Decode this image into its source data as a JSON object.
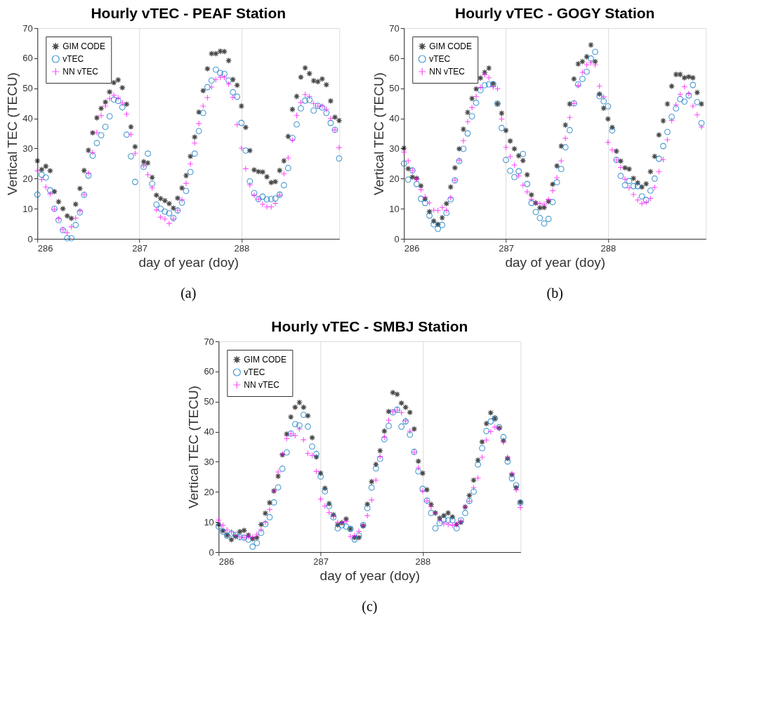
{
  "chart_data": [
    {
      "type": "scatter",
      "title": "Hourly vTEC - PEAF Station",
      "xlabel": "day of year (doy)",
      "ylabel": "Vertical TEC (TECU)",
      "annotations": [
        "(a)"
      ],
      "xlim": [
        286,
        288.96
      ],
      "xticks": [
        286,
        287,
        288
      ],
      "ylim": [
        0,
        70
      ],
      "yticks": [
        0,
        10,
        20,
        30,
        40,
        50,
        60,
        70
      ],
      "grid": "x",
      "legend": "top left",
      "x": [
        286,
        286.042,
        286.083,
        286.125,
        286.167,
        286.208,
        286.25,
        286.292,
        286.333,
        286.375,
        286.417,
        286.458,
        286.5,
        286.542,
        286.583,
        286.625,
        286.667,
        286.708,
        286.75,
        286.792,
        286.833,
        286.875,
        286.917,
        286.958,
        287,
        287.042,
        287.083,
        287.125,
        287.167,
        287.208,
        287.25,
        287.292,
        287.333,
        287.375,
        287.417,
        287.458,
        287.5,
        287.542,
        287.583,
        287.625,
        287.667,
        287.708,
        287.75,
        287.792,
        287.833,
        287.875,
        287.917,
        287.958,
        288,
        288.042,
        288.083,
        288.125,
        288.167,
        288.208,
        288.25,
        288.292,
        288.333,
        288.375,
        288.417,
        288.458,
        288.5,
        288.542,
        288.583,
        288.625,
        288.667,
        288.708,
        288.75,
        288.792,
        288.833,
        288.875,
        288.917,
        288.958
      ],
      "series": [
        {
          "name": "GIM CODE",
          "color": "#000000",
          "marker": "star",
          "values": [
            25.9,
            23.0,
            24.1,
            22.6,
            15.7,
            12.3,
            10.0,
            7.6,
            6.8,
            11.5,
            16.7,
            22.7,
            29.4,
            35.2,
            40.2,
            43.3,
            45.4,
            48.8,
            51.9,
            52.8,
            50.2,
            44.7,
            37.2,
            30.6,
            null,
            25.6,
            25.2,
            20.4,
            14.5,
            13.4,
            12.7,
            11.7,
            10.2,
            13.5,
            16.9,
            21.0,
            27.4,
            33.8,
            42.1,
            49.2,
            56.5,
            61.5,
            61.5,
            62.3,
            62.2,
            59.2,
            52.9,
            51.0,
            44.1,
            37.0,
            29.3,
            22.9,
            22.3,
            22.2,
            20.6,
            18.7,
            19.0,
            22.7,
            25.9,
            34.0,
            43.0,
            47.3,
            53.7,
            56.8,
            54.9,
            52.5,
            52.2,
            53.1,
            51.2,
            45.8,
            40.4,
            39.3
          ]
        },
        {
          "name": "vTEC",
          "color": "#0072bd",
          "marker": "circle",
          "values": [
            14.7,
            21.3,
            20.4,
            16.1,
            10.0,
            6.2,
            2.9,
            0.2,
            0.2,
            4.6,
            8.8,
            14.6,
            21.0,
            27.6,
            31.8,
            34.4,
            37.2,
            40.7,
            46.3,
            45.8,
            43.7,
            34.6,
            27.4,
            18.9,
            null,
            23.9,
            28.3,
            18.3,
            11.4,
            10.0,
            9.0,
            8.5,
            6.9,
            9.4,
            12.0,
            15.9,
            22.2,
            28.3,
            35.8,
            41.8,
            50.4,
            52.6,
            56.2,
            55.1,
            54.8,
            52.6,
            48.7,
            47.2,
            38.5,
            29.3,
            19.1,
            15.2,
            13.2,
            14.0,
            13.1,
            13.2,
            13.4,
            14.7,
            17.8,
            23.5,
            33.5,
            38.0,
            43.3,
            45.9,
            46.1,
            42.6,
            44.2,
            43.6,
            41.8,
            38.5,
            36.2,
            26.7
          ]
        },
        {
          "name": "NN vTEC",
          "color": "#ff00ff",
          "marker": "cross",
          "values": [
            22.6,
            19.7,
            17.2,
            14.9,
            9.8,
            6.7,
            3.1,
            2.0,
            4.0,
            6.9,
            9.3,
            14.7,
            21.8,
            28.7,
            35.3,
            40.9,
            44.1,
            46.6,
            47.7,
            46.8,
            45.1,
            41.4,
            34.7,
            28.4,
            null,
            24.3,
            21.3,
            16.9,
            9.6,
            7.2,
            6.6,
            5.1,
            6.6,
            9.5,
            13.0,
            18.4,
            24.9,
            31.8,
            38.3,
            44.1,
            46.9,
            50.4,
            52.9,
            53.7,
            53.6,
            51.4,
            47.0,
            37.9,
            30.1,
            23.3,
            17.9,
            14.5,
            13.2,
            11.5,
            10.6,
            10.6,
            11.8,
            14.5,
            21.6,
            26.9,
            32.8,
            41.0,
            45.3,
            47.9,
            47.3,
            44.9,
            44.1,
            44.1,
            43.0,
            40.0,
            36.2,
            30.3
          ]
        }
      ]
    },
    {
      "type": "scatter",
      "title": "Hourly vTEC - GOGY Station",
      "xlabel": "day of year (doy)",
      "ylabel": "Vertical TEC (TECU)",
      "annotations": [
        "(b)"
      ],
      "xlim": [
        286,
        288.96
      ],
      "xticks": [
        286,
        287,
        288
      ],
      "ylim": [
        0,
        70
      ],
      "yticks": [
        0,
        10,
        20,
        30,
        40,
        50,
        60,
        70
      ],
      "grid": "x",
      "legend": "top left",
      "x": [
        286,
        286.042,
        286.083,
        286.125,
        286.167,
        286.208,
        286.25,
        286.292,
        286.333,
        286.375,
        286.417,
        286.458,
        286.5,
        286.542,
        286.583,
        286.625,
        286.667,
        286.708,
        286.75,
        286.792,
        286.833,
        286.875,
        286.917,
        286.958,
        287,
        287.042,
        287.083,
        287.125,
        287.167,
        287.208,
        287.25,
        287.292,
        287.333,
        287.375,
        287.417,
        287.458,
        287.5,
        287.542,
        287.583,
        287.625,
        287.667,
        287.708,
        287.75,
        287.792,
        287.833,
        287.875,
        287.917,
        287.958,
        288,
        288.042,
        288.083,
        288.125,
        288.167,
        288.208,
        288.25,
        288.292,
        288.333,
        288.375,
        288.417,
        288.458,
        288.5,
        288.542,
        288.583,
        288.625,
        288.667,
        288.708,
        288.75,
        288.792,
        288.833,
        288.875,
        288.917
      ],
      "series": [
        {
          "name": "GIM CODE",
          "color": "#000000",
          "marker": "star",
          "values": [
            30.1,
            23.3,
            20.5,
            20.1,
            17.6,
            13.2,
            9.0,
            5.9,
            4.8,
            7.0,
            11.7,
            17.2,
            23.6,
            29.9,
            36.4,
            42.0,
            46.6,
            49.8,
            53.4,
            55.3,
            56.7,
            51.5,
            44.9,
            41.7,
            36.0,
            32.5,
            29.9,
            27.6,
            26.0,
            21.3,
            14.6,
            11.9,
            10.3,
            10.4,
            12.4,
            18.1,
            24.2,
            30.8,
            37.8,
            44.8,
            53.1,
            58.1,
            58.9,
            60.5,
            64.4,
            58.9,
            48.1,
            43.4,
            39.8,
            37.0,
            29.1,
            25.8,
            23.6,
            23.2,
            20.1,
            18.6,
            17.2,
            18.3,
            22.3,
            27.4,
            34.5,
            39.2,
            44.8,
            50.7,
            54.6,
            54.6,
            53.5,
            53.8,
            53.5,
            48.6,
            44.8
          ]
        },
        {
          "name": "vTEC",
          "color": "#0072bd",
          "marker": "circle",
          "values": [
            25.0,
            19.7,
            22.7,
            18.2,
            13.3,
            11.9,
            7.7,
            4.8,
            3.3,
            4.6,
            8.6,
            13.1,
            19.4,
            25.8,
            29.9,
            35.0,
            40.7,
            45.2,
            49.4,
            51.0,
            51.3,
            51.3,
            44.9,
            36.8,
            26.2,
            22.6,
            20.5,
            22.4,
            28.2,
            18.2,
            11.9,
            8.9,
            6.9,
            5.1,
            6.6,
            12.2,
            18.8,
            23.2,
            30.4,
            36.1,
            45.0,
            51.3,
            53.1,
            55.5,
            59.9,
            62.1,
            47.4,
            45.7,
            44.0,
            36.0,
            26.2,
            20.9,
            17.8,
            19.2,
            17.5,
            17.5,
            14.1,
            12.9,
            16.0,
            20.0,
            26.6,
            30.8,
            35.5,
            40.5,
            43.3,
            46.4,
            45.6,
            47.6,
            51.1,
            45.4,
            38.4
          ]
        },
        {
          "name": "NN vTEC",
          "color": "#ff00ff",
          "marker": "cross",
          "values": [
            28.8,
            25.9,
            22.7,
            19.8,
            16.3,
            13.9,
            11.9,
            9.5,
            9.4,
            10.4,
            9.5,
            13.6,
            19.5,
            26.1,
            32.6,
            38.9,
            43.6,
            47.3,
            50.3,
            54.5,
            53.5,
            50.5,
            49.8,
            39.8,
            30.4,
            27.3,
            24.5,
            20.9,
            17.8,
            15.6,
            13.1,
            11.9,
            11.7,
            11.5,
            13.1,
            16.0,
            20.3,
            25.9,
            33.4,
            40.3,
            45.0,
            50.9,
            55.3,
            57.8,
            58.5,
            57.8,
            50.7,
            47.1,
            32.1,
            29.5,
            26.2,
            23.7,
            19.8,
            16.9,
            14.7,
            12.9,
            11.7,
            12.1,
            13.4,
            17.1,
            22.3,
            26.3,
            32.9,
            39.3,
            44.5,
            48.0,
            50.5,
            48.2,
            44.1,
            41.2,
            37.1
          ]
        }
      ]
    },
    {
      "type": "scatter",
      "title": "Hourly vTEC - SMBJ Station",
      "xlabel": "day of year (doy)",
      "ylabel": "Vertical TEC (TECU)",
      "annotations": [
        "(c)"
      ],
      "xlim": [
        286,
        288.96
      ],
      "xticks": [
        286,
        287,
        288
      ],
      "ylim": [
        0,
        70
      ],
      "yticks": [
        0,
        10,
        20,
        30,
        40,
        50,
        60,
        70
      ],
      "grid": "x",
      "legend": "top left",
      "x": [
        286,
        286.042,
        286.083,
        286.125,
        286.167,
        286.208,
        286.25,
        286.292,
        286.333,
        286.375,
        286.417,
        286.458,
        286.5,
        286.542,
        286.583,
        286.625,
        286.667,
        286.708,
        286.75,
        286.792,
        286.833,
        286.875,
        286.917,
        286.958,
        287,
        287.042,
        287.083,
        287.125,
        287.167,
        287.208,
        287.25,
        287.292,
        287.333,
        287.375,
        287.417,
        287.458,
        287.5,
        287.542,
        287.583,
        287.625,
        287.667,
        287.708,
        287.75,
        287.792,
        287.833,
        287.875,
        287.917,
        287.958,
        288,
        288.042,
        288.083,
        288.125,
        288.167,
        288.208,
        288.25,
        288.292,
        288.333,
        288.375,
        288.417,
        288.458,
        288.5,
        288.542,
        288.583,
        288.625,
        288.667,
        288.708,
        288.75,
        288.792,
        288.833,
        288.875,
        288.917,
        288.958
      ],
      "series": [
        {
          "name": "GIM CODE",
          "color": "#000000",
          "marker": "star",
          "values": [
            9.2,
            7.1,
            5.6,
            4.1,
            5.2,
            6.8,
            7.2,
            5.6,
            4.4,
            4.8,
            9.2,
            12.9,
            16.4,
            20.3,
            25.2,
            32.3,
            39.2,
            44.9,
            48.1,
            49.7,
            48.1,
            45.3,
            38.0,
            31.6,
            26.2,
            21.2,
            16.1,
            12.4,
            9.0,
            9.7,
            11.0,
            7.7,
            4.8,
            4.8,
            8.7,
            15.9,
            23.4,
            29.1,
            33.7,
            40.2,
            46.7,
            53.0,
            52.4,
            49.5,
            48.1,
            46.4,
            40.9,
            30.2,
            26.2,
            20.7,
            15.8,
            13.0,
            11.3,
            12.1,
            13.0,
            11.7,
            9.2,
            9.9,
            15.0,
            18.8,
            23.9,
            30.5,
            36.6,
            42.7,
            46.3,
            44.4,
            41.2,
            37.0,
            31.1,
            25.7,
            21.4,
            16.6
          ]
        },
        {
          "name": "vTEC",
          "color": "#0072bd",
          "marker": "circle",
          "values": [
            8.5,
            6.8,
            5.4,
            6.2,
            5.7,
            5.0,
            4.8,
            4.1,
            1.8,
            3.0,
            6.4,
            9.3,
            11.6,
            16.5,
            21.5,
            27.7,
            33.1,
            39.4,
            42.5,
            42.1,
            45.6,
            41.7,
            35.1,
            32.6,
            25.1,
            20.2,
            15.3,
            11.6,
            7.9,
            8.9,
            8.5,
            7.7,
            4.2,
            5.5,
            9.0,
            14.6,
            21.4,
            27.8,
            31.0,
            37.5,
            41.9,
            46.4,
            47.3,
            41.7,
            43.4,
            39.0,
            33.3,
            26.8,
            21.0,
            17.1,
            13.0,
            7.9,
            9.6,
            10.8,
            10.6,
            10.6,
            7.9,
            10.6,
            13.0,
            17.0,
            20.1,
            29.1,
            34.5,
            40.2,
            43.4,
            44.4,
            41.5,
            38.2,
            30.1,
            24.5,
            22.2,
            16.4
          ]
        },
        {
          "name": "NN vTEC",
          "color": "#ff00ff",
          "marker": "cross",
          "values": [
            10.6,
            8.9,
            7.4,
            6.7,
            5.5,
            5.0,
            4.8,
            5.2,
            5.0,
            5.9,
            7.4,
            9.9,
            14.1,
            20.3,
            26.6,
            32.6,
            37.7,
            39.3,
            38.7,
            40.9,
            37.3,
            32.8,
            32.1,
            26.8,
            17.6,
            15.3,
            13.2,
            11.9,
            9.9,
            9.9,
            10.2,
            5.2,
            5.5,
            6.9,
            8.9,
            12.1,
            17.3,
            23.9,
            31.7,
            38.2,
            43.8,
            46.6,
            47.2,
            46.3,
            43.6,
            40.2,
            33.2,
            28.0,
            20.3,
            17.0,
            15.1,
            13.0,
            10.6,
            9.5,
            9.2,
            8.9,
            9.2,
            10.2,
            15.0,
            16.9,
            21.4,
            24.6,
            31.5,
            37.2,
            40.0,
            41.5,
            41.0,
            36.5,
            31.5,
            26.1,
            20.7,
            14.8
          ]
        }
      ]
    }
  ]
}
